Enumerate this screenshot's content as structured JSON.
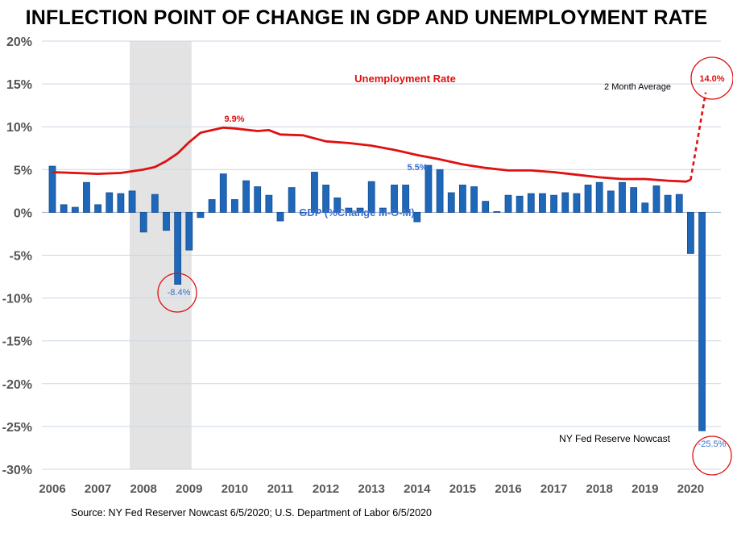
{
  "title": "INFLECTION POINT OF CHANGE IN GDP AND UNEMPLOYMENT RATE",
  "source": "Source: NY Fed Reserver Nowcast 6/5/2020; U.S. Department of Labor  6/5/2020",
  "chart_data": {
    "type": "bar",
    "ylim": [
      -30,
      20
    ],
    "y_ticks": [
      20,
      15,
      10,
      5,
      0,
      -5,
      -10,
      -15,
      -20,
      -25,
      -30
    ],
    "y_tick_labels": [
      "20%",
      "15%",
      "10%",
      "5%",
      "0%",
      "-5%",
      "-10%",
      "-15%",
      "-20%",
      "-25%",
      "-30%"
    ],
    "x_tick_labels": [
      "2006",
      "2007",
      "2008",
      "2009",
      "2010",
      "2011",
      "2012",
      "2013",
      "2014",
      "2015",
      "2016",
      "2017",
      "2018",
      "2019",
      "2020"
    ],
    "recession_shade": {
      "start": 2007.75,
      "end": 2009.0
    },
    "gdp_series": {
      "name": "GDP (%Change M-O-M)",
      "x": [
        2006.0,
        2006.25,
        2006.5,
        2006.75,
        2007.0,
        2007.25,
        2007.5,
        2007.75,
        2008.0,
        2008.25,
        2008.5,
        2008.75,
        2009.0,
        2009.25,
        2009.5,
        2009.75,
        2010.0,
        2010.25,
        2010.5,
        2010.75,
        2011.0,
        2011.25,
        2011.5,
        2011.75,
        2012.0,
        2012.25,
        2012.5,
        2012.75,
        2013.0,
        2013.25,
        2013.5,
        2013.75,
        2014.0,
        2014.25,
        2014.5,
        2014.75,
        2015.0,
        2015.25,
        2015.5,
        2015.75,
        2016.0,
        2016.25,
        2016.5,
        2016.75,
        2017.0,
        2017.25,
        2017.5,
        2017.75,
        2018.0,
        2018.25,
        2018.5,
        2018.75,
        2019.0,
        2019.25,
        2019.5,
        2019.75,
        2020.0,
        2020.25
      ],
      "values": [
        5.4,
        0.9,
        0.6,
        3.5,
        0.9,
        2.3,
        2.2,
        2.5,
        -2.3,
        2.1,
        -2.1,
        -8.4,
        -4.4,
        -0.6,
        1.5,
        4.5,
        1.5,
        3.7,
        3.0,
        2.0,
        -1.0,
        2.9,
        0.0,
        4.7,
        3.2,
        1.7,
        0.5,
        0.5,
        3.6,
        0.5,
        3.2,
        3.2,
        -1.1,
        5.5,
        5.0,
        2.3,
        3.2,
        3.0,
        1.3,
        0.1,
        2.0,
        1.9,
        2.2,
        2.2,
        2.0,
        2.3,
        2.2,
        3.2,
        3.5,
        2.5,
        3.5,
        2.9,
        1.1,
        3.1,
        2.0,
        2.1,
        -4.8,
        -25.5
      ]
    },
    "unemployment_series": {
      "name": "Unemployment Rate",
      "x": [
        2006.0,
        2006.5,
        2007.0,
        2007.5,
        2008.0,
        2008.25,
        2008.5,
        2008.75,
        2009.0,
        2009.25,
        2009.5,
        2009.75,
        2010.0,
        2010.5,
        2010.75,
        2011.0,
        2011.5,
        2012.0,
        2012.5,
        2013.0,
        2013.5,
        2014.0,
        2014.5,
        2015.0,
        2015.5,
        2016.0,
        2016.5,
        2017.0,
        2017.5,
        2018.0,
        2018.5,
        2019.0,
        2019.5,
        2019.9,
        2020.0
      ],
      "values": [
        4.7,
        4.6,
        4.5,
        4.6,
        5.0,
        5.3,
        6.0,
        6.9,
        8.2,
        9.3,
        9.6,
        9.9,
        9.8,
        9.5,
        9.6,
        9.1,
        9.0,
        8.3,
        8.1,
        7.8,
        7.3,
        6.7,
        6.2,
        5.6,
        5.2,
        4.9,
        4.9,
        4.7,
        4.4,
        4.1,
        3.9,
        3.9,
        3.7,
        3.6,
        3.8
      ]
    },
    "projection": {
      "name": "2 Month Average",
      "x": [
        2020.0,
        2020.33
      ],
      "values": [
        3.8,
        14.0
      ]
    },
    "annotations": {
      "unemp_peak": "9.9%",
      "gdp_2014_label": "5.5%",
      "gdp_trough": "-8.4%",
      "unemp_2020": "14.0%",
      "gdp_2020": "-25.5%",
      "nowcast": "NY Fed Reserve Nowcast",
      "two_month_avg": "2 Month Average"
    },
    "colors": {
      "bar": "#1f67b8",
      "bar_dark": "#164f8f",
      "unemployment": "#e01010",
      "recession": "#e3e3e3",
      "grid": "#c9d7e6",
      "label_blue": "#3a6fd0",
      "circle": "#e01010"
    }
  }
}
